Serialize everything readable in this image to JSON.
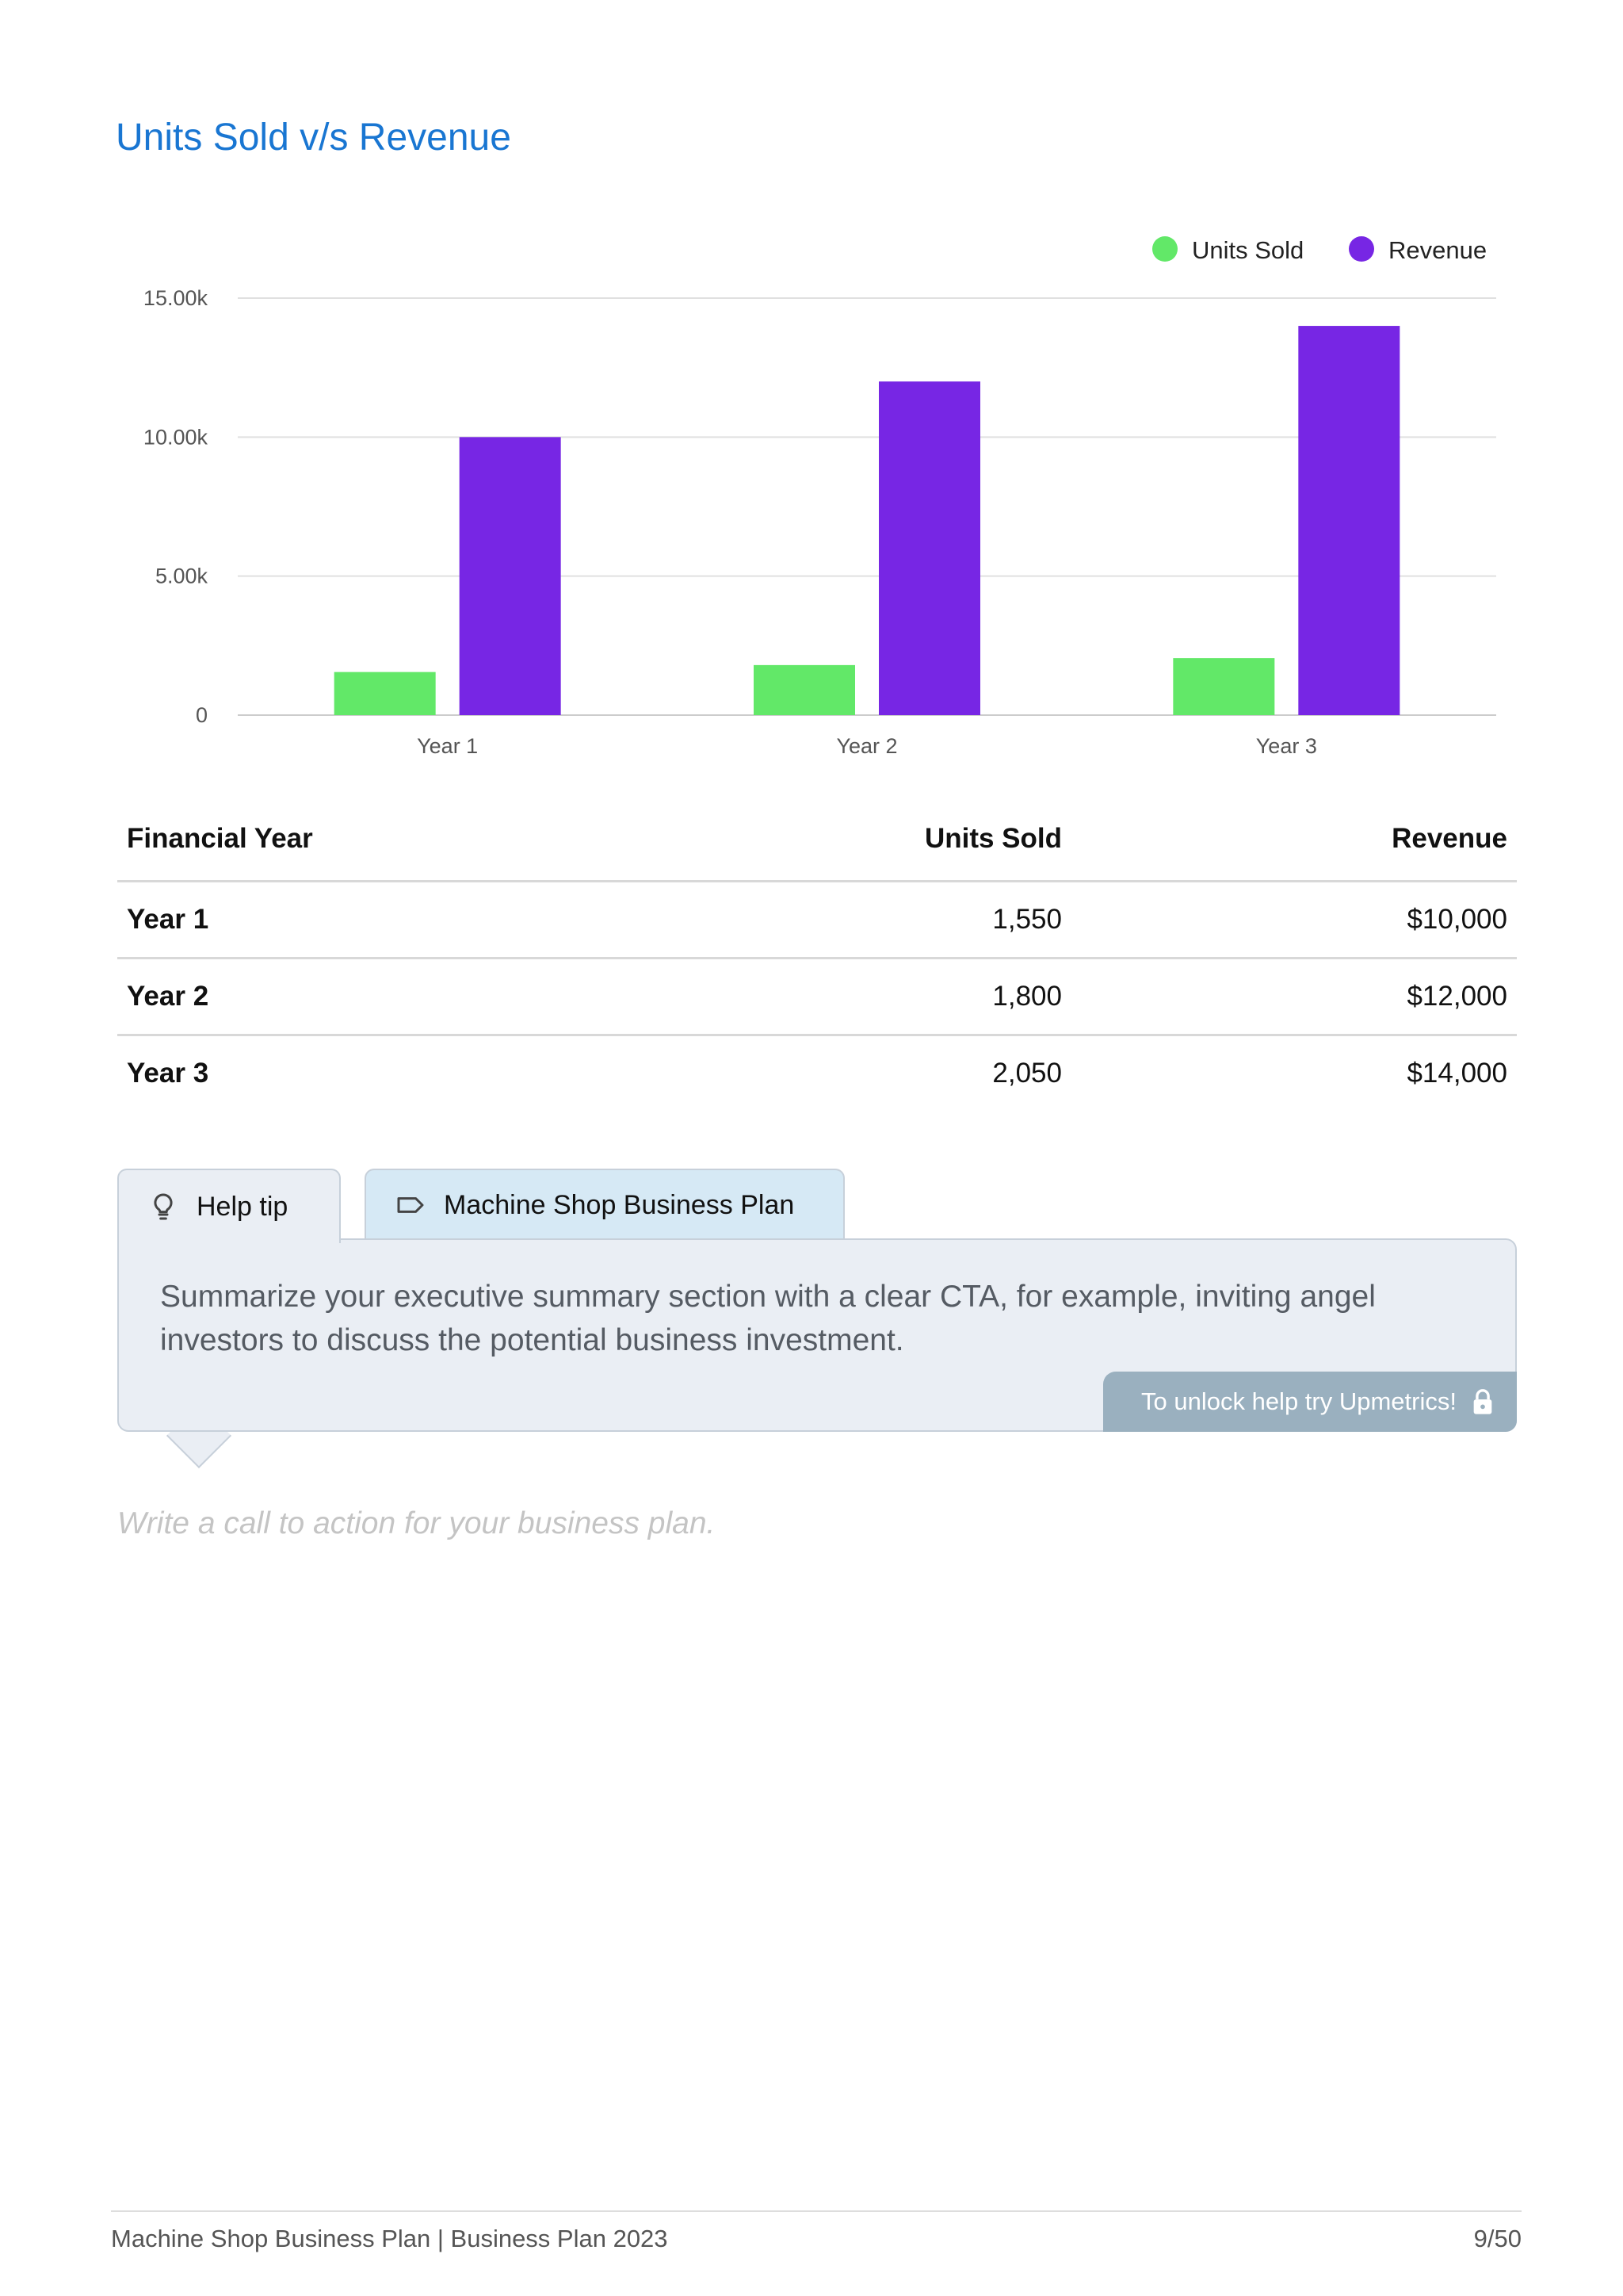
{
  "page": {
    "title": "Units Sold v/s Revenue"
  },
  "chart_data": {
    "type": "bar",
    "categories": [
      "Year 1",
      "Year 2",
      "Year 3"
    ],
    "series": [
      {
        "name": "Units Sold",
        "values": [
          1550,
          1800,
          2050
        ],
        "color": "#62e868"
      },
      {
        "name": "Revenue",
        "values": [
          10000,
          12000,
          14000
        ],
        "color": "#7726e4"
      }
    ],
    "yticks": [
      0,
      5000,
      10000,
      15000
    ],
    "ytick_labels": [
      "0",
      "5.00k",
      "10.00k",
      "15.00k"
    ],
    "ylim": [
      0,
      15000
    ],
    "grid": true,
    "legend_position": "top-right"
  },
  "table": {
    "headers": [
      "Financial Year",
      "Units Sold",
      "Revenue"
    ],
    "rows": [
      [
        "Year 1",
        "1,550",
        "$10,000"
      ],
      [
        "Year 2",
        "1,800",
        "$12,000"
      ],
      [
        "Year 3",
        "2,050",
        "$14,000"
      ]
    ]
  },
  "help": {
    "tab_help_label": "Help tip",
    "tab_plan_label": "Machine Shop Business Plan",
    "tip_text": "Summarize your executive summary section with a clear CTA, for example, inviting angel investors to discuss the potential business investment.",
    "unlock_label": "To unlock help try Upmetrics!",
    "icons": {
      "help": "lightbulb-icon",
      "plan": "tag-icon",
      "unlock": "lock-icon"
    }
  },
  "cta_placeholder": "Write a call to action for your business plan.",
  "footer": {
    "left": "Machine Shop Business Plan | Business Plan 2023",
    "right": "9/50"
  }
}
